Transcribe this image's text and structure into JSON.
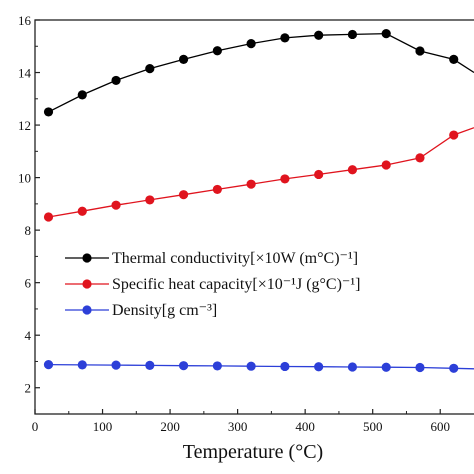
{
  "chart_data": {
    "type": "line",
    "xlabel": "Temperature (°C)",
    "ylabel": "",
    "xlim": [
      0,
      650
    ],
    "ylim": [
      1,
      16
    ],
    "xticks": [
      0,
      100,
      200,
      300,
      400,
      500,
      600
    ],
    "yticks": [
      2,
      4,
      6,
      8,
      10,
      12,
      14,
      16
    ],
    "ytick_labels": [
      "2",
      "4",
      "6",
      "8",
      "10",
      "12",
      "14",
      "16"
    ],
    "legend_position": "center-left",
    "series": [
      {
        "name": "Thermal conductivity[×10W (m°C)⁻¹]",
        "color": "#000000",
        "x": [
          20,
          70,
          120,
          170,
          220,
          270,
          320,
          370,
          420,
          470,
          520,
          570,
          620,
          650
        ],
        "y": [
          12.5,
          13.15,
          13.7,
          14.15,
          14.5,
          14.83,
          15.1,
          15.32,
          15.42,
          15.45,
          15.48,
          14.82,
          14.5,
          14.0
        ]
      },
      {
        "name": "Specific heat capacity[×10⁻¹J (g°C)⁻¹]",
        "color": "#e0141e",
        "x": [
          20,
          70,
          120,
          170,
          220,
          270,
          320,
          370,
          420,
          470,
          520,
          570,
          620,
          650
        ],
        "y": [
          8.5,
          8.72,
          8.95,
          9.15,
          9.35,
          9.55,
          9.75,
          9.95,
          10.12,
          10.3,
          10.48,
          10.75,
          11.62,
          11.9
        ]
      },
      {
        "name": "Density[g cm⁻³]",
        "color": "#2c3fd8",
        "x": [
          20,
          70,
          120,
          170,
          220,
          270,
          320,
          370,
          420,
          470,
          520,
          570,
          620,
          650
        ],
        "y": [
          2.88,
          2.87,
          2.86,
          2.85,
          2.84,
          2.83,
          2.82,
          2.81,
          2.8,
          2.79,
          2.78,
          2.77,
          2.74,
          2.72
        ]
      }
    ]
  }
}
